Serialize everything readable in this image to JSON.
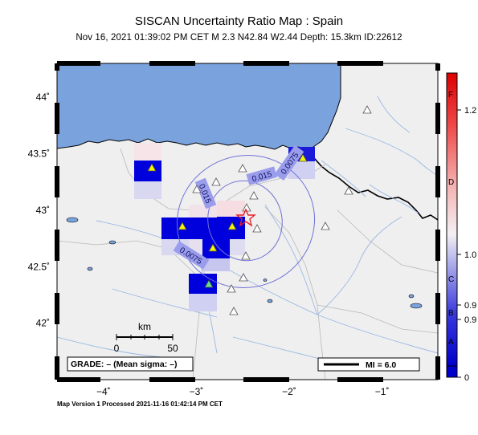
{
  "title": "SISCAN Uncertainty Ratio Map : Spain",
  "subtitle": "Nov 16, 2021 01:39:02 PM CET   M 2.3    N42.84 W2.44    Depth: 15.3km    ID:22612",
  "footer": "Map Version 1 Processed 2021-11-16 01:42:14 PM CET",
  "map": {
    "lon_range": [
      -4.5,
      -0.4
    ],
    "lat_range": [
      41.5,
      44.3
    ],
    "x_ticks": [
      {
        "value": -4,
        "label": "−4˚"
      },
      {
        "value": -3,
        "label": "−3˚"
      },
      {
        "value": -2,
        "label": "−2˚"
      },
      {
        "value": -1,
        "label": "−1˚"
      }
    ],
    "y_ticks": [
      {
        "value": 44,
        "label": "44˚"
      },
      {
        "value": 43.5,
        "label": "43.5˚"
      },
      {
        "value": 43,
        "label": "43˚"
      },
      {
        "value": 42.5,
        "label": "42.5˚"
      },
      {
        "value": 42,
        "label": "42˚"
      }
    ],
    "epicenter": {
      "lon": -2.44,
      "lat": 42.84
    },
    "contour_labels": [
      "0.015",
      "0.0075",
      "0.015",
      "0.0075"
    ],
    "scale_bar": {
      "label": "km",
      "ticks": [
        "0",
        "50"
      ]
    },
    "grade_box": "GRADE: – (Mean sigma: –)",
    "mi_legend": "MI = 6.0",
    "colors": {
      "sea": "#7aa3de",
      "land": "#efefef",
      "rivers": "#9bb8e4",
      "contour": "#6f72d6",
      "epicenter": "#e8202a",
      "station_active": "#f4f40a",
      "station_inactive": "#ffffff"
    }
  },
  "colorbar": {
    "labels": [
      "1.2",
      "1.0",
      "0.9",
      "0.9",
      "0"
    ],
    "grades": [
      "F",
      "D",
      "C",
      "B",
      "A"
    ]
  }
}
